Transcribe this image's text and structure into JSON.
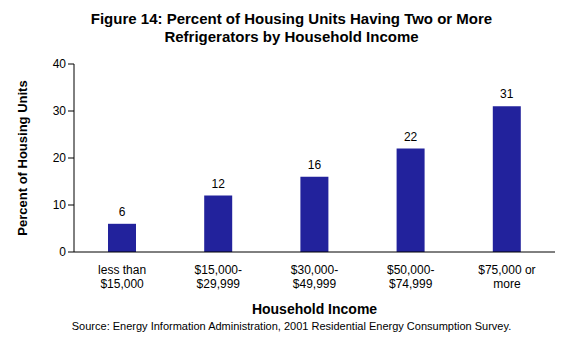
{
  "chart_data": {
    "type": "bar",
    "title": "Figure 14: Percent of Housing Units Having Two or More Refrigerators by Household Income",
    "x_label": "Household Income",
    "y_label": "Percent of Housing Units",
    "categories": [
      "less than\n$15,000",
      "$15,000-\n$29,999",
      "$30,000-\n$49,999",
      "$50,000-\n$74,999",
      "$75,000 or\nmore"
    ],
    "values": [
      6,
      12,
      16,
      22,
      31
    ],
    "color": "#22229c",
    "ylim": [
      0,
      40
    ],
    "yticks": [
      0,
      10,
      20,
      30,
      40
    ],
    "grid": false,
    "data_labels": true,
    "source": "Source:  Energy Information Administration, 2001 Residential Energy Consumption Survey."
  }
}
